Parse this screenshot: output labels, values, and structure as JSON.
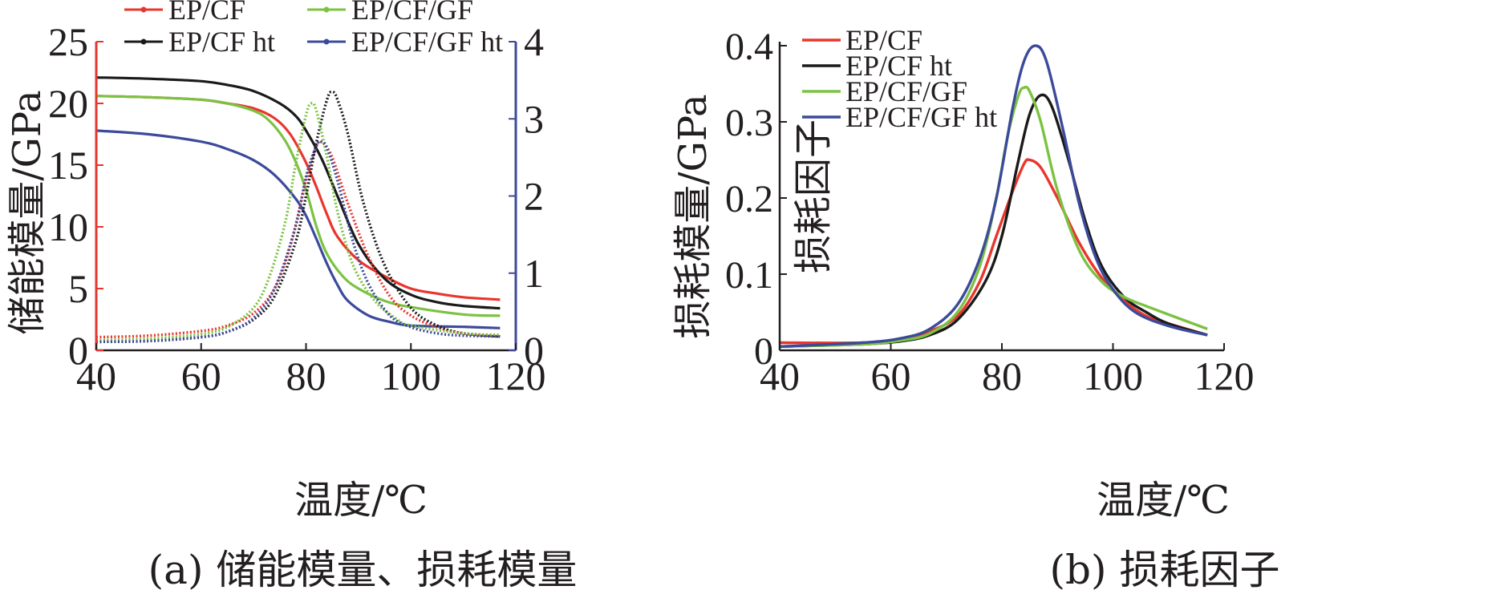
{
  "chart_data": [
    {
      "type": "line",
      "caption": "(a) 储能模量、损耗模量",
      "xlabel": "温度/℃",
      "ylabel_left": "储能模量/GPa",
      "ylabel_right": "损耗模量/GPa",
      "xlim": [
        40,
        120
      ],
      "ylim_left": [
        0,
        25
      ],
      "ylim_right": [
        0,
        4
      ],
      "x_ticks": [
        "40",
        "60",
        "80",
        "100",
        "120"
      ],
      "y_left_ticks": [
        "0",
        "5",
        "10",
        "15",
        "20",
        "25"
      ],
      "y_right_ticks": [
        "0",
        "1",
        "2",
        "3",
        "4"
      ],
      "legend": [
        "EP/CF",
        "EP/CF/GF",
        "EP/CF ht",
        "EP/CF/GF ht"
      ],
      "legend_position": "top",
      "colors": {
        "EP/CF": "#e8362d",
        "EP/CF ht": "#1a1a1a",
        "EP/CF/GF": "#7cc242",
        "EP/CF/GF ht": "#3c4a9a",
        "left_axis": "#e8362d",
        "right_axis": "#3c4a9a"
      },
      "storage_modulus": [
        {
          "name": "EP/CF",
          "axis": "left",
          "x": [
            40,
            50,
            60,
            65,
            70,
            74,
            77,
            80,
            82,
            84,
            86,
            90,
            95,
            100,
            105,
            110,
            117
          ],
          "y": [
            20.6,
            20.5,
            20.3,
            20.0,
            19.6,
            18.8,
            17.5,
            15.2,
            13.2,
            11.0,
            9.2,
            7.3,
            6.0,
            5.0,
            4.6,
            4.3,
            4.1
          ]
        },
        {
          "name": "EP/CF ht",
          "axis": "left",
          "x": [
            40,
            50,
            60,
            65,
            70,
            75,
            78,
            80,
            83,
            86,
            90,
            95,
            100,
            105,
            110,
            117
          ],
          "y": [
            22.1,
            22.0,
            21.8,
            21.5,
            21.0,
            20.0,
            19.0,
            17.8,
            15.5,
            12.5,
            8.6,
            5.8,
            4.5,
            3.9,
            3.6,
            3.4
          ]
        },
        {
          "name": "EP/CF/GF",
          "axis": "left",
          "x": [
            40,
            50,
            60,
            65,
            70,
            73,
            76,
            78,
            80,
            82,
            84,
            87,
            90,
            95,
            100,
            110,
            117
          ],
          "y": [
            20.6,
            20.5,
            20.3,
            20.0,
            19.4,
            18.6,
            17.0,
            15.3,
            13.0,
            10.0,
            7.8,
            6.0,
            5.0,
            4.0,
            3.5,
            2.9,
            2.8
          ]
        },
        {
          "name": "EP/CF/GF ht",
          "axis": "left",
          "x": [
            40,
            50,
            60,
            65,
            70,
            74,
            78,
            80,
            82,
            84,
            86,
            88,
            92,
            96,
            100,
            110,
            117
          ],
          "y": [
            17.8,
            17.5,
            16.9,
            16.3,
            15.4,
            14.2,
            12.3,
            10.9,
            9.0,
            7.0,
            5.3,
            4.0,
            2.8,
            2.3,
            2.0,
            1.9,
            1.8
          ]
        }
      ],
      "loss_modulus": [
        {
          "name": "EP/CF",
          "axis": "right",
          "x": [
            40,
            50,
            60,
            65,
            70,
            74,
            77,
            80,
            82,
            83,
            85,
            88,
            92,
            96,
            100,
            105,
            110,
            117
          ],
          "y": [
            0.17,
            0.19,
            0.25,
            0.32,
            0.48,
            0.8,
            1.35,
            2.2,
            2.65,
            2.7,
            2.5,
            1.9,
            1.2,
            0.7,
            0.45,
            0.3,
            0.22,
            0.18
          ]
        },
        {
          "name": "EP/CF ht",
          "axis": "right",
          "x": [
            40,
            50,
            60,
            65,
            70,
            74,
            78,
            80,
            82,
            84,
            85,
            86,
            88,
            91,
            95,
            100,
            105,
            110,
            117
          ],
          "y": [
            0.11,
            0.12,
            0.17,
            0.24,
            0.4,
            0.7,
            1.4,
            2.0,
            2.7,
            3.25,
            3.35,
            3.25,
            2.8,
            1.9,
            1.1,
            0.55,
            0.32,
            0.22,
            0.18
          ]
        },
        {
          "name": "EP/CF/GF",
          "axis": "right",
          "x": [
            40,
            50,
            60,
            65,
            70,
            73,
            76,
            78,
            80,
            81,
            82,
            84,
            86,
            89,
            93,
            97,
            100,
            110,
            117
          ],
          "y": [
            0.13,
            0.15,
            0.21,
            0.3,
            0.55,
            0.95,
            1.65,
            2.4,
            3.05,
            3.2,
            3.1,
            2.5,
            1.8,
            1.1,
            0.65,
            0.42,
            0.32,
            0.22,
            0.2
          ]
        },
        {
          "name": "EP/CF/GF ht",
          "axis": "right",
          "x": [
            40,
            50,
            60,
            65,
            70,
            74,
            78,
            80,
            82,
            83,
            84,
            86,
            89,
            92,
            96,
            100,
            105,
            110,
            117
          ],
          "y": [
            0.11,
            0.12,
            0.17,
            0.24,
            0.42,
            0.8,
            1.6,
            2.25,
            2.65,
            2.7,
            2.62,
            2.2,
            1.4,
            0.85,
            0.45,
            0.3,
            0.22,
            0.19,
            0.18
          ]
        }
      ]
    },
    {
      "type": "line",
      "caption": "(b) 损耗因子",
      "xlabel": "温度/℃",
      "ylabel": "损耗因子",
      "xlim": [
        40,
        120
      ],
      "ylim": [
        0,
        0.4
      ],
      "x_ticks": [
        "40",
        "60",
        "80",
        "100",
        "120"
      ],
      "y_ticks": [
        "0",
        "0.1",
        "0.2",
        "0.3",
        "0.4"
      ],
      "legend": [
        "EP/CF",
        "EP/CF ht",
        "EP/CF/GF",
        "EP/CF/GF ht"
      ],
      "legend_position": "top-left",
      "series": [
        {
          "name": "EP/CF",
          "color": "#e8362d",
          "x": [
            40,
            55,
            62,
            67,
            72,
            76,
            79,
            82,
            84,
            85,
            87,
            90,
            94,
            98,
            102,
            106,
            110,
            117
          ],
          "y": [
            0.01,
            0.01,
            0.015,
            0.025,
            0.045,
            0.09,
            0.15,
            0.21,
            0.245,
            0.25,
            0.24,
            0.2,
            0.14,
            0.095,
            0.065,
            0.045,
            0.035,
            0.02
          ]
        },
        {
          "name": "EP/CF ht",
          "color": "#1a1a1a",
          "x": [
            40,
            55,
            62,
            67,
            72,
            77,
            80,
            83,
            85,
            87,
            89,
            92,
            95,
            98,
            102,
            106,
            110,
            117
          ],
          "y": [
            0.005,
            0.008,
            0.012,
            0.02,
            0.04,
            0.09,
            0.15,
            0.25,
            0.31,
            0.335,
            0.32,
            0.25,
            0.17,
            0.11,
            0.07,
            0.05,
            0.035,
            0.02
          ]
        },
        {
          "name": "EP/CF/GF",
          "color": "#7cc242",
          "x": [
            40,
            55,
            62,
            67,
            72,
            76,
            79,
            81,
            83,
            84,
            85,
            87,
            90,
            94,
            98,
            102,
            106,
            110,
            117
          ],
          "y": [
            0.005,
            0.008,
            0.013,
            0.022,
            0.05,
            0.11,
            0.2,
            0.28,
            0.335,
            0.345,
            0.34,
            0.3,
            0.21,
            0.13,
            0.09,
            0.07,
            0.058,
            0.047,
            0.028
          ]
        },
        {
          "name": "EP/CF/GF ht",
          "color": "#3c4a9a",
          "x": [
            40,
            55,
            62,
            67,
            72,
            76,
            79,
            82,
            84,
            86,
            88,
            91,
            94,
            97,
            100,
            104,
            110,
            117
          ],
          "y": [
            0.005,
            0.01,
            0.016,
            0.028,
            0.06,
            0.12,
            0.2,
            0.32,
            0.38,
            0.4,
            0.38,
            0.29,
            0.19,
            0.12,
            0.08,
            0.05,
            0.032,
            0.02
          ]
        }
      ]
    }
  ]
}
